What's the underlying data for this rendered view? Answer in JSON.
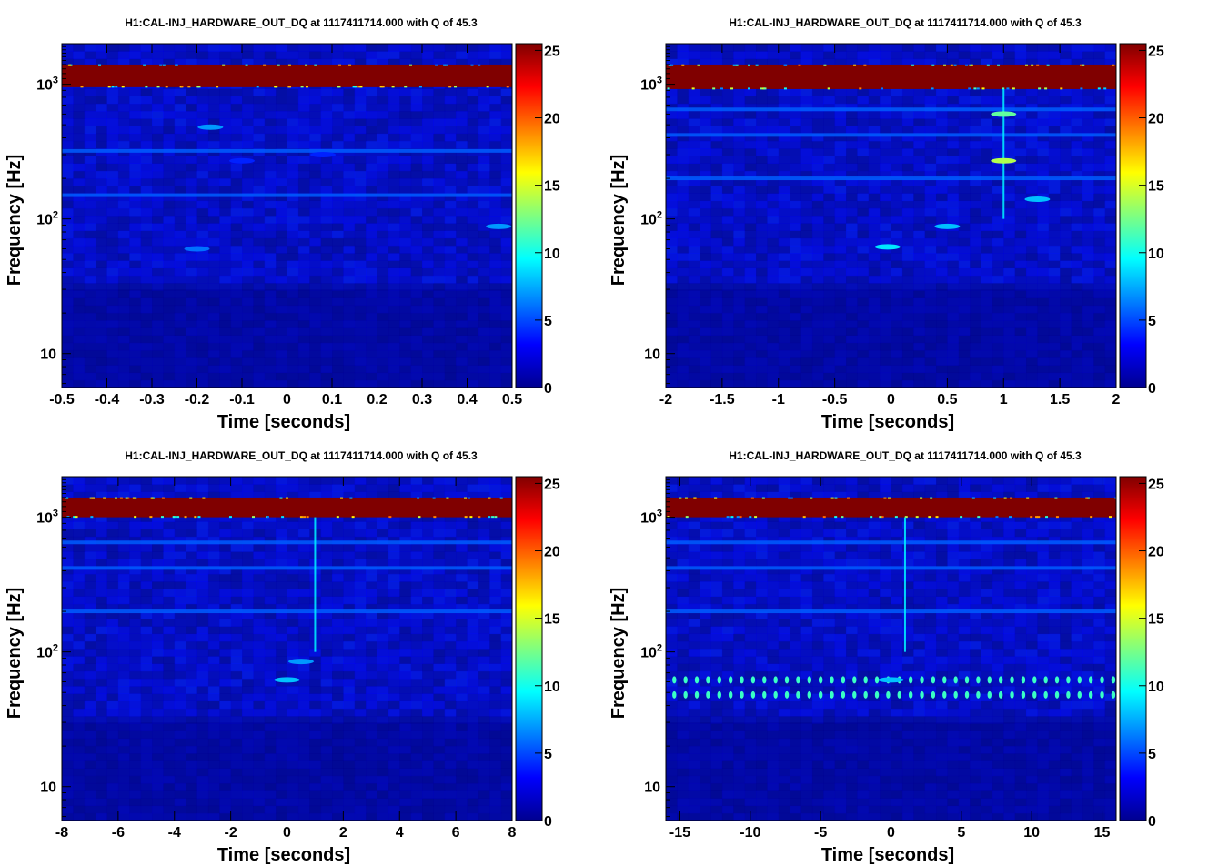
{
  "chart_data": [
    {
      "type": "heatmap",
      "title": "H1:CAL-INJ_HARDWARE_OUT_DQ at 1117411714.000 with Q of 45.3",
      "xlabel": "Time [seconds]",
      "ylabel": "Frequency [Hz]",
      "xlim": [
        -0.5,
        0.5
      ],
      "ylim": [
        5.6,
        2000
      ],
      "yscale": "log",
      "xticks": [
        "-0.5",
        "-0.4",
        "-0.3",
        "-0.2",
        "-0.1",
        "0",
        "0.1",
        "0.2",
        "0.3",
        "0.4",
        "0.5"
      ],
      "yticks": [
        {
          "base": "10",
          "exp": ""
        },
        {
          "base": "10",
          "exp": "2"
        },
        {
          "base": "10",
          "exp": "3"
        }
      ],
      "colorbar": {
        "range": [
          0,
          25.5
        ],
        "ticks": [
          "0",
          "5",
          "10",
          "15",
          "20",
          "25"
        ],
        "colormap": "jet"
      },
      "features": {
        "saturated_band_hz": [
          950,
          1400
        ],
        "hz_lines": [
          1000,
          320,
          150
        ],
        "blobs": [
          {
            "t": -0.2,
            "f": 60,
            "energy": 6
          },
          {
            "t": 0.47,
            "f": 88,
            "energy": 7
          },
          {
            "t": -0.17,
            "f": 480,
            "energy": 7
          },
          {
            "t": -0.1,
            "f": 270,
            "energy": 4
          },
          {
            "t": 0.08,
            "f": 300,
            "energy": 4
          }
        ]
      }
    },
    {
      "type": "heatmap",
      "title": "H1:CAL-INJ_HARDWARE_OUT_DQ at 1117411714.000 with Q of 45.3",
      "xlabel": "Time [seconds]",
      "ylabel": "Frequency [Hz]",
      "xlim": [
        -2,
        2
      ],
      "ylim": [
        5.6,
        2000
      ],
      "yscale": "log",
      "xticks": [
        "-2",
        "-1.5",
        "-1",
        "-0.5",
        "0",
        "0.5",
        "1",
        "1.5",
        "2"
      ],
      "yticks": [
        {
          "base": "10",
          "exp": ""
        },
        {
          "base": "10",
          "exp": "2"
        },
        {
          "base": "10",
          "exp": "3"
        }
      ],
      "colorbar": {
        "range": [
          0,
          25.5
        ],
        "ticks": [
          "0",
          "5",
          "10",
          "15",
          "20",
          "25"
        ],
        "colormap": "jet"
      },
      "features": {
        "saturated_band_hz": [
          920,
          1400
        ],
        "transient_t": 1.0,
        "hz_lines": [
          650,
          420,
          200
        ],
        "blobs": [
          {
            "t": 1.0,
            "f": 270,
            "energy": 14
          },
          {
            "t": 1.0,
            "f": 600,
            "energy": 12
          },
          {
            "t": -0.03,
            "f": 62,
            "energy": 9
          },
          {
            "t": 0.5,
            "f": 88,
            "energy": 8
          },
          {
            "t": 1.3,
            "f": 140,
            "energy": 8
          }
        ]
      }
    },
    {
      "type": "heatmap",
      "title": "H1:CAL-INJ_HARDWARE_OUT_DQ at 1117411714.000 with Q of 45.3",
      "xlabel": "Time [seconds]",
      "ylabel": "Frequency [Hz]",
      "xlim": [
        -8,
        8
      ],
      "ylim": [
        5.6,
        2000
      ],
      "yscale": "log",
      "xticks": [
        "-8",
        "-6",
        "-4",
        "-2",
        "0",
        "2",
        "4",
        "6",
        "8"
      ],
      "yticks": [
        {
          "base": "10",
          "exp": ""
        },
        {
          "base": "10",
          "exp": "2"
        },
        {
          "base": "10",
          "exp": "3"
        }
      ],
      "colorbar": {
        "range": [
          0,
          25.5
        ],
        "ticks": [
          "0",
          "5",
          "10",
          "15",
          "20",
          "25"
        ],
        "colormap": "jet"
      },
      "features": {
        "saturated_band_hz": [
          1000,
          1400
        ],
        "transient_t": 1.0,
        "hz_lines": [
          650,
          420,
          200
        ],
        "blobs": [
          {
            "t": 0.0,
            "f": 62,
            "energy": 8
          },
          {
            "t": 0.5,
            "f": 85,
            "energy": 7
          }
        ]
      }
    },
    {
      "type": "heatmap",
      "title": "H1:CAL-INJ_HARDWARE_OUT_DQ at 1117411714.000 with Q of 45.3",
      "xlabel": "Time [seconds]",
      "ylabel": "Frequency [Hz]",
      "xlim": [
        -16,
        16
      ],
      "ylim": [
        5.6,
        2000
      ],
      "yscale": "log",
      "xticks": [
        "-15",
        "-10",
        "-5",
        "0",
        "5",
        "10",
        "15"
      ],
      "yticks": [
        {
          "base": "10",
          "exp": ""
        },
        {
          "base": "10",
          "exp": "2"
        },
        {
          "base": "10",
          "exp": "3"
        }
      ],
      "colorbar": {
        "range": [
          0,
          25.5
        ],
        "ticks": [
          "0",
          "5",
          "10",
          "15",
          "20",
          "25"
        ],
        "colormap": "jet"
      },
      "features": {
        "saturated_band_hz": [
          1000,
          1400
        ],
        "transient_t": 1.0,
        "hz_lines": [
          650,
          420,
          200
        ],
        "periodic_rows_hz": [
          62,
          48
        ],
        "blobs": [
          {
            "t": 0.0,
            "f": 62,
            "energy": 8
          }
        ]
      }
    }
  ]
}
